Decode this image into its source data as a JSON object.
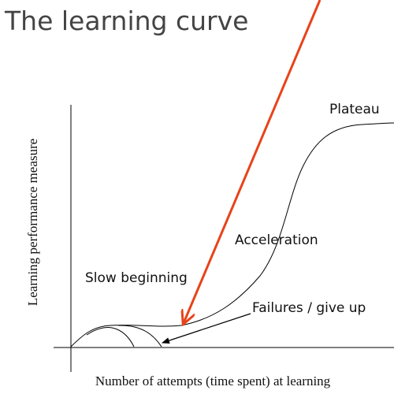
{
  "title": "The learning curve",
  "axes": {
    "y_label": "Learning performance measure",
    "x_label": "Number of attempts (time spent)  at learning"
  },
  "annotations": {
    "plateau": "Plateau",
    "acceleration": "Acceleration",
    "slow_beginning": "Slow beginning",
    "failures": "Failures / give up"
  }
}
